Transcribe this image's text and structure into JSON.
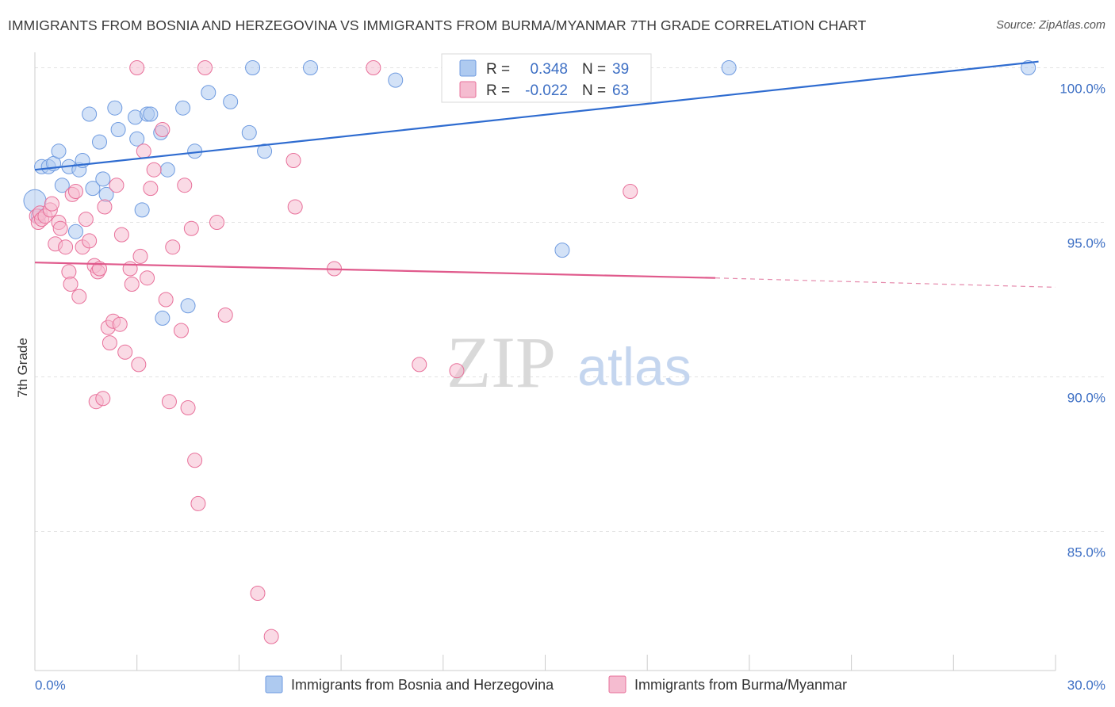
{
  "chart_data": {
    "type": "scatter",
    "title": "IMMIGRANTS FROM BOSNIA AND HERZEGOVINA VS IMMIGRANTS FROM BURMA/MYANMAR 7TH GRADE CORRELATION CHART",
    "source": "Source: ZipAtlas.com",
    "xlabel": "",
    "ylabel": "7th Grade",
    "xlim": [
      0,
      30
    ],
    "ylim": [
      80.5,
      100.5
    ],
    "x_tick_labels": {
      "min": "0.0%",
      "max": "30.0%"
    },
    "y_ticks": [
      {
        "value": 85,
        "label": "85.0%"
      },
      {
        "value": 90,
        "label": "90.0%"
      },
      {
        "value": 95,
        "label": "95.0%"
      },
      {
        "value": 100,
        "label": "100.0%"
      }
    ],
    "watermark": {
      "zip": "ZIP",
      "atlas": "atlas"
    },
    "stats_legend": [
      {
        "r_label": "R =",
        "r_value": "0.348",
        "n_label": "N =",
        "n_value": "39"
      },
      {
        "r_label": "R =",
        "r_value": "-0.022",
        "n_label": "N =",
        "n_value": "63"
      }
    ],
    "series": [
      {
        "name": "Immigrants from Bosnia and Herzegovina",
        "color": "#6f9be0",
        "fill": "#aecaf0",
        "trend": {
          "x0": 0,
          "y0": 96.7,
          "x1": 29.5,
          "y1": 100.2,
          "dashed_from": null
        },
        "points": [
          [
            0.0,
            95.7
          ],
          [
            0.2,
            96.8
          ],
          [
            0.4,
            96.8
          ],
          [
            0.55,
            96.9
          ],
          [
            0.7,
            97.3
          ],
          [
            0.8,
            96.2
          ],
          [
            1.0,
            96.8
          ],
          [
            1.2,
            94.7
          ],
          [
            1.3,
            96.7
          ],
          [
            1.4,
            97.0
          ],
          [
            1.6,
            98.5
          ],
          [
            1.7,
            96.1
          ],
          [
            1.9,
            97.6
          ],
          [
            2.0,
            96.4
          ],
          [
            2.1,
            95.9
          ],
          [
            2.35,
            98.7
          ],
          [
            2.45,
            98.0
          ],
          [
            2.95,
            98.4
          ],
          [
            3.0,
            97.7
          ],
          [
            3.15,
            95.4
          ],
          [
            3.3,
            98.5
          ],
          [
            3.4,
            98.5
          ],
          [
            3.7,
            97.9
          ],
          [
            3.75,
            91.9
          ],
          [
            3.9,
            96.7
          ],
          [
            4.35,
            98.7
          ],
          [
            4.5,
            92.3
          ],
          [
            4.7,
            97.3
          ],
          [
            5.1,
            99.2
          ],
          [
            5.75,
            98.9
          ],
          [
            6.3,
            97.9
          ],
          [
            6.4,
            100.0
          ],
          [
            6.75,
            97.3
          ],
          [
            8.1,
            100.0
          ],
          [
            10.6,
            99.6
          ],
          [
            15.5,
            94.1
          ],
          [
            20.4,
            100.0
          ],
          [
            29.2,
            100.0
          ],
          [
            0.1,
            95.2
          ]
        ]
      },
      {
        "name": "Immigrants from Burma/Myanmar",
        "color": "#e8709a",
        "fill": "#f5bcd0",
        "trend": {
          "x0": 0,
          "y0": 93.7,
          "x1": 20.0,
          "y1": 93.2,
          "dashed_to_x": 30,
          "dashed_to_y": 92.9
        },
        "points": [
          [
            0.05,
            95.2
          ],
          [
            0.1,
            95.0
          ],
          [
            0.15,
            95.3
          ],
          [
            0.2,
            95.1
          ],
          [
            0.3,
            95.2
          ],
          [
            0.45,
            95.4
          ],
          [
            0.5,
            95.6
          ],
          [
            0.6,
            94.3
          ],
          [
            0.7,
            95.0
          ],
          [
            0.75,
            94.8
          ],
          [
            0.9,
            94.2
          ],
          [
            1.0,
            93.4
          ],
          [
            1.05,
            93.0
          ],
          [
            1.1,
            95.9
          ],
          [
            1.2,
            96.0
          ],
          [
            1.3,
            92.6
          ],
          [
            1.4,
            94.2
          ],
          [
            1.5,
            95.1
          ],
          [
            1.6,
            94.4
          ],
          [
            1.75,
            93.6
          ],
          [
            1.8,
            89.2
          ],
          [
            1.85,
            93.4
          ],
          [
            1.9,
            93.5
          ],
          [
            2.0,
            89.3
          ],
          [
            2.05,
            95.5
          ],
          [
            2.15,
            91.6
          ],
          [
            2.2,
            91.1
          ],
          [
            2.3,
            91.8
          ],
          [
            2.4,
            96.2
          ],
          [
            2.5,
            91.7
          ],
          [
            2.55,
            94.6
          ],
          [
            2.65,
            90.8
          ],
          [
            2.8,
            93.5
          ],
          [
            2.85,
            93.0
          ],
          [
            3.05,
            90.4
          ],
          [
            3.1,
            93.9
          ],
          [
            3.2,
            97.3
          ],
          [
            3.3,
            93.2
          ],
          [
            3.4,
            96.1
          ],
          [
            3.5,
            96.7
          ],
          [
            3.75,
            98.0
          ],
          [
            3.85,
            92.5
          ],
          [
            3.95,
            89.2
          ],
          [
            4.05,
            94.2
          ],
          [
            4.3,
            91.5
          ],
          [
            4.4,
            96.2
          ],
          [
            4.5,
            89.0
          ],
          [
            4.6,
            94.8
          ],
          [
            4.7,
            87.3
          ],
          [
            4.8,
            85.9
          ],
          [
            5.0,
            100.0
          ],
          [
            5.35,
            95.0
          ],
          [
            5.6,
            92.0
          ],
          [
            6.55,
            83.0
          ],
          [
            6.95,
            81.6
          ],
          [
            7.6,
            97.0
          ],
          [
            7.65,
            95.5
          ],
          [
            8.8,
            93.5
          ],
          [
            9.95,
            100.0
          ],
          [
            11.3,
            90.4
          ],
          [
            12.4,
            90.2
          ],
          [
            17.5,
            96.0
          ],
          [
            3.0,
            100.0
          ]
        ]
      }
    ]
  }
}
